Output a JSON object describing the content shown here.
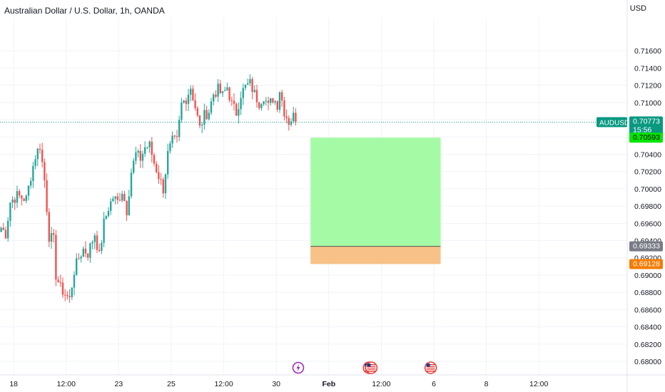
{
  "header": {
    "title": "Australian Dollar / U.S. Dollar, 1h, OANDA",
    "currency": "USD"
  },
  "colors": {
    "up": "#26a69a",
    "down": "#ef5350",
    "profit_zone": "#a5fba5",
    "loss_zone": "#f7c187",
    "price_label": "#089981",
    "target_label": "#00e600",
    "entry_label": "#787b86",
    "stop_label": "#f57c00",
    "event_purple": "#9c27b0",
    "event_flag": "#e53935"
  },
  "chart_data": {
    "type": "candlestick",
    "symbol": "AUDUSD",
    "ylim": [
      0.679,
      0.719
    ],
    "y_ticks": [
      "0.71600",
      "0.71400",
      "0.71200",
      "0.71000",
      "0.70800",
      "0.70600",
      "0.70400",
      "0.70200",
      "0.70000",
      "0.69800",
      "0.69600",
      "0.69400",
      "0.69200",
      "0.69000",
      "0.68800",
      "0.68600",
      "0.68400",
      "0.68200",
      "0.68000"
    ],
    "x_ticks": [
      {
        "label": "18",
        "bar": 6
      },
      {
        "label": "12:00",
        "bar": 29
      },
      {
        "label": "23",
        "bar": 52
      },
      {
        "label": "25",
        "bar": 75
      },
      {
        "label": "12:00",
        "bar": 98
      },
      {
        "label": "30",
        "bar": 121
      },
      {
        "label": "Feb",
        "bar": 144
      },
      {
        "label": "12:00",
        "bar": 167
      },
      {
        "label": "6",
        "bar": 190
      },
      {
        "label": "8",
        "bar": 213
      },
      {
        "label": "12:00",
        "bar": 236
      }
    ],
    "total_bars": 260,
    "visible_bars_start": 0,
    "anchors": [
      [
        0,
        0.6955
      ],
      [
        2,
        0.6948
      ],
      [
        4,
        0.6985
      ],
      [
        7,
        0.6992
      ],
      [
        11,
        0.6988
      ],
      [
        13,
        0.7015
      ],
      [
        15,
        0.7038
      ],
      [
        17,
        0.705
      ],
      [
        19,
        0.701
      ],
      [
        21,
        0.6945
      ],
      [
        23,
        0.694
      ],
      [
        24,
        0.69
      ],
      [
        26,
        0.6885
      ],
      [
        28,
        0.6878
      ],
      [
        30,
        0.6872
      ],
      [
        32,
        0.6905
      ],
      [
        34,
        0.692
      ],
      [
        36,
        0.693
      ],
      [
        38,
        0.6925
      ],
      [
        41,
        0.6948
      ],
      [
        43,
        0.6922
      ],
      [
        45,
        0.696
      ],
      [
        47,
        0.6978
      ],
      [
        49,
        0.699
      ],
      [
        51,
        0.6985
      ],
      [
        53,
        0.6998
      ],
      [
        55,
        0.6975
      ],
      [
        57,
        0.702
      ],
      [
        59,
        0.704
      ],
      [
        61,
        0.7035
      ],
      [
        63,
        0.7048
      ],
      [
        65,
        0.705
      ],
      [
        67,
        0.703
      ],
      [
        69,
        0.7015
      ],
      [
        71,
        0.7
      ],
      [
        73,
        0.704
      ],
      [
        75,
        0.7055
      ],
      [
        77,
        0.7055
      ],
      [
        79,
        0.7098
      ],
      [
        81,
        0.7105
      ],
      [
        83,
        0.7118
      ],
      [
        85,
        0.7095
      ],
      [
        87,
        0.707
      ],
      [
        89,
        0.7085
      ],
      [
        91,
        0.709
      ],
      [
        93,
        0.711
      ],
      [
        95,
        0.7115
      ],
      [
        97,
        0.7108
      ],
      [
        99,
        0.7118
      ],
      [
        101,
        0.7098
      ],
      [
        103,
        0.7088
      ],
      [
        105,
        0.711
      ],
      [
        107,
        0.7118
      ],
      [
        109,
        0.7122
      ],
      [
        111,
        0.711
      ],
      [
        113,
        0.71
      ],
      [
        115,
        0.7108
      ],
      [
        117,
        0.7095
      ],
      [
        119,
        0.7105
      ],
      [
        121,
        0.7098
      ],
      [
        122,
        0.7115
      ],
      [
        124,
        0.709
      ],
      [
        126,
        0.7078
      ],
      [
        128,
        0.7084
      ],
      [
        129,
        0.7077
      ]
    ],
    "last_bar": 129,
    "current_price": {
      "symbol": "AUDUSD",
      "value": "0.70773",
      "countdown": "15:56"
    },
    "position": {
      "type": "long",
      "start_bar": 136,
      "end_bar": 193,
      "target": 0.70593,
      "entry": 0.69333,
      "stop": 0.69128,
      "target_label": "0.70593",
      "entry_label": "0.69333",
      "stop_label": "0.69128"
    },
    "events": [
      {
        "icon": "lightning-icon",
        "bar": 130
      },
      {
        "icon": "us-flag-icon",
        "bar": 161
      },
      {
        "icon": "us-flag-icon",
        "bar": 162
      },
      {
        "icon": "us-flag-icon",
        "bar": 188
      }
    ]
  }
}
